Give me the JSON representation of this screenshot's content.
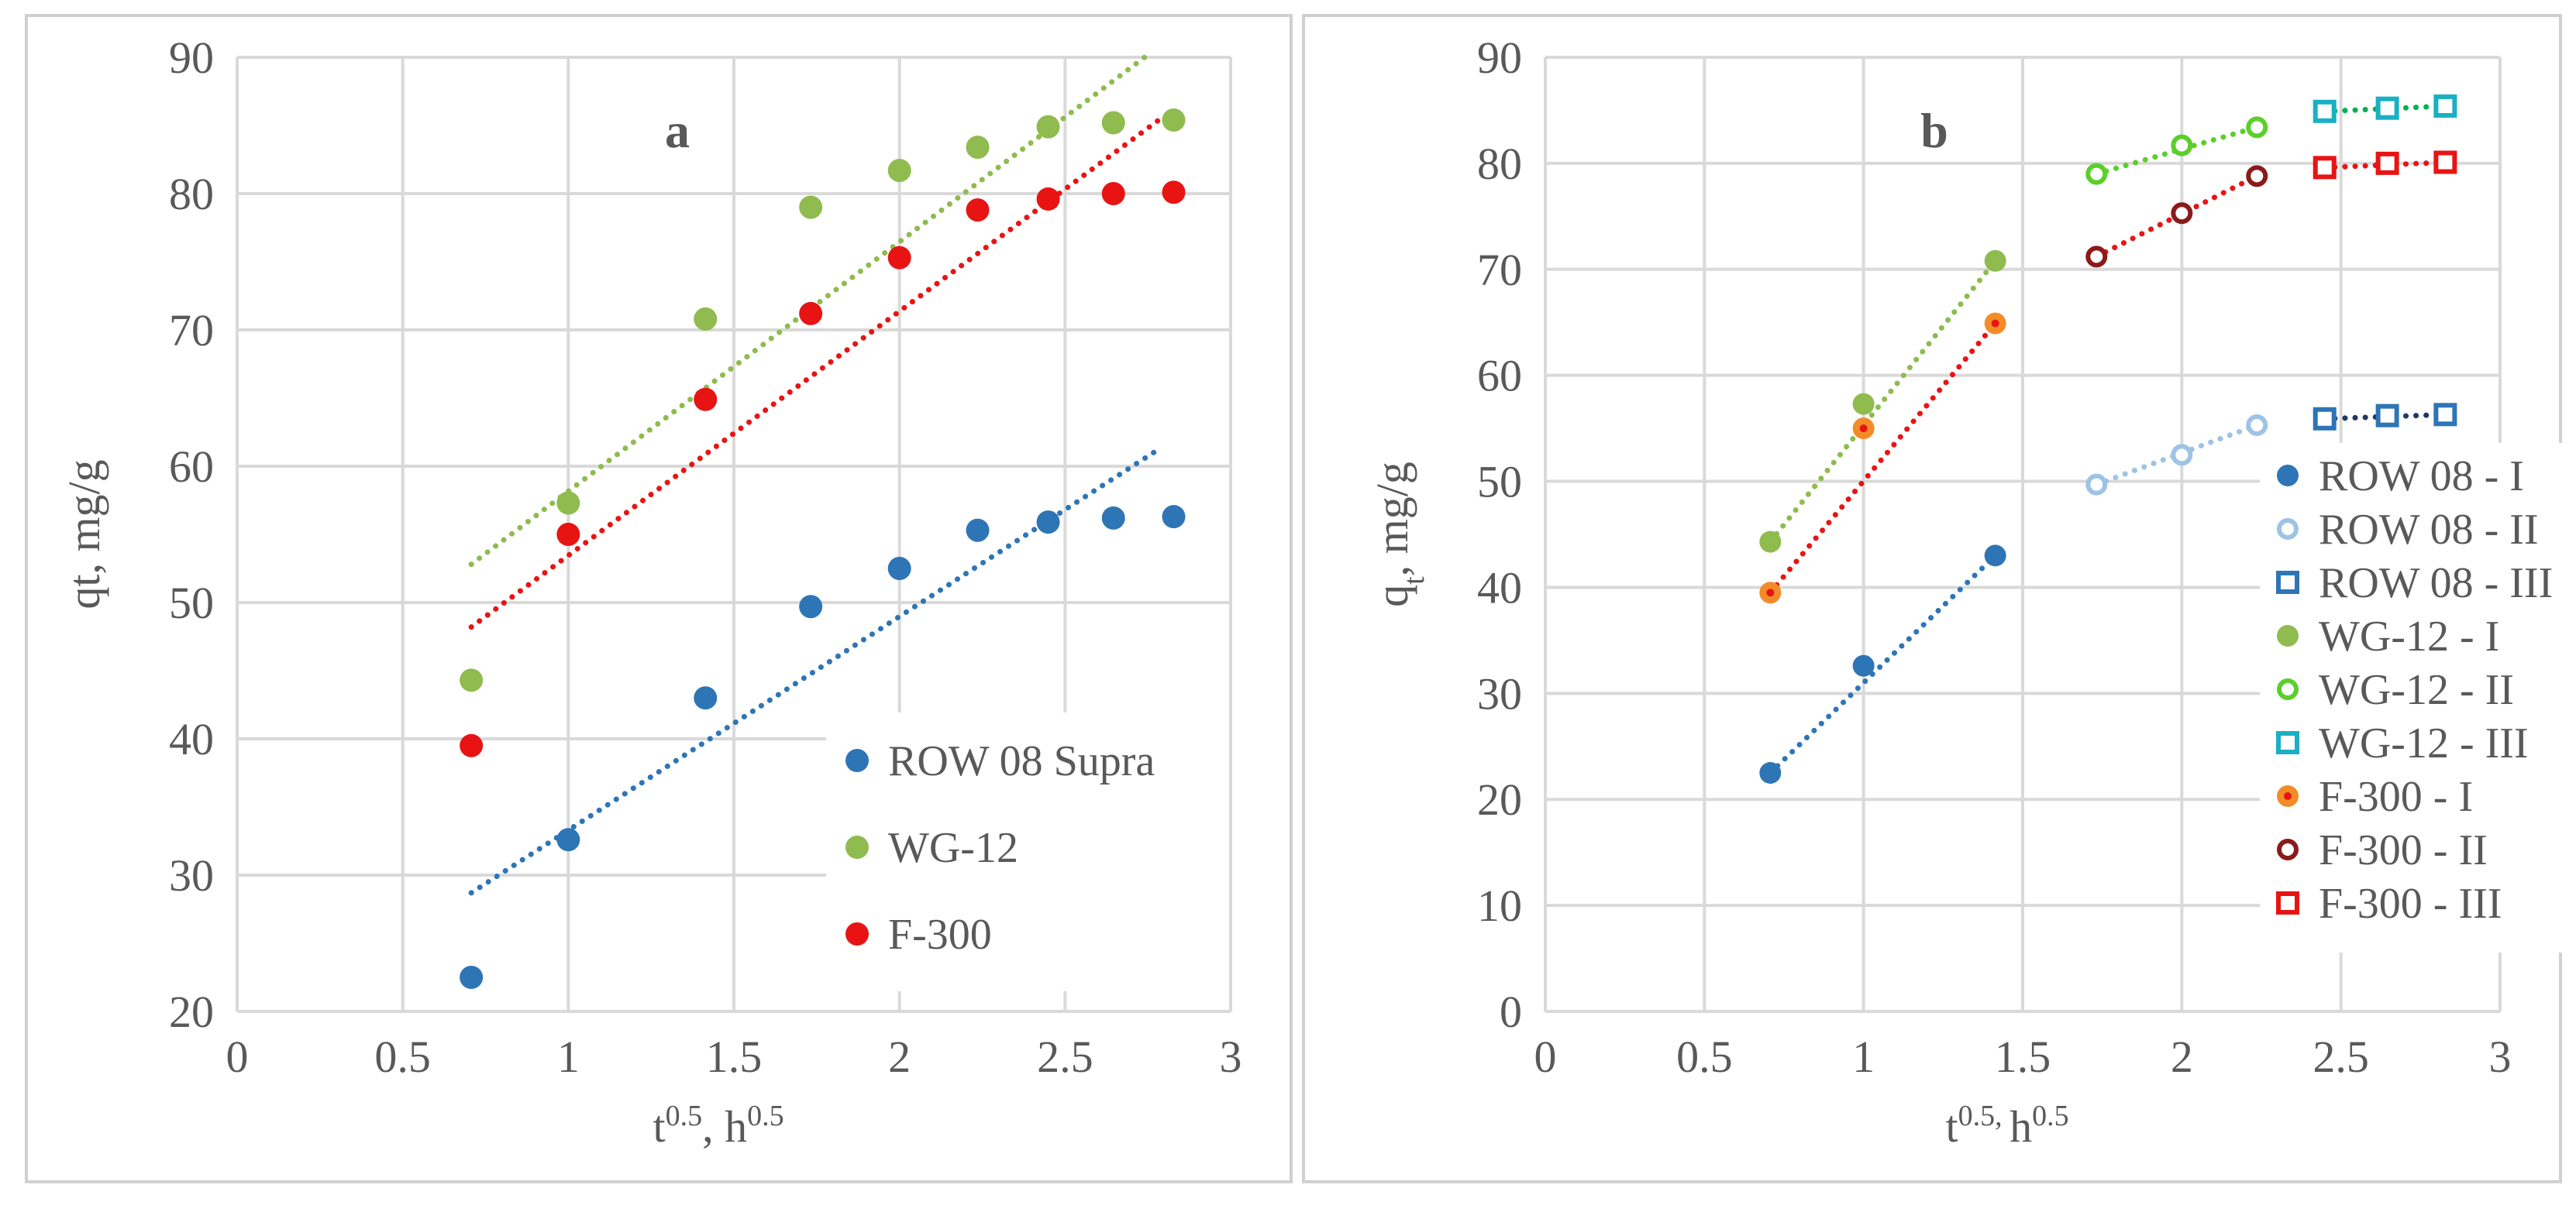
{
  "chart_data": [
    {
      "id": "a",
      "type": "scatter",
      "panel_label": "a",
      "xlabel": "t0.5, h0.5",
      "xlabel_parts": [
        "t",
        "0.5",
        ", h",
        "0.5"
      ],
      "ylabel": "qt, mg/g",
      "xlim": [
        0,
        3
      ],
      "ylim": [
        20,
        90
      ],
      "xticks": [
        "0",
        "0.5",
        "1",
        "1.5",
        "2",
        "2.5",
        "3"
      ],
      "yticks": [
        "20",
        "30",
        "40",
        "50",
        "60",
        "70",
        "80",
        "90"
      ],
      "grid": true,
      "legend_position": "bottom-right",
      "series": [
        {
          "name": "ROW 08 Supra",
          "color": "#2e75b6",
          "marker": "filled-circle",
          "x": [
            0.707,
            1.0,
            1.414,
            1.732,
            2.0,
            2.236,
            2.449,
            2.646,
            2.828
          ],
          "y": [
            22.5,
            32.6,
            43.0,
            49.7,
            52.5,
            55.3,
            55.9,
            56.2,
            56.3
          ],
          "trend": [
            [
              0.707,
              28.7
            ],
            [
              2.78,
              61.2
            ]
          ]
        },
        {
          "name": "WG-12",
          "color": "#8fbb4f",
          "marker": "filled-circle",
          "x": [
            0.707,
            1.0,
            1.414,
            1.732,
            2.0,
            2.236,
            2.449,
            2.646,
            2.828
          ],
          "y": [
            44.3,
            57.3,
            70.8,
            79.0,
            81.7,
            83.4,
            84.9,
            85.2,
            85.4
          ],
          "trend": [
            [
              0.707,
              52.8
            ],
            [
              2.74,
              90.0
            ]
          ]
        },
        {
          "name": "F-300",
          "color": "#e81414",
          "marker": "filled-circle",
          "x": [
            0.707,
            1.0,
            1.414,
            1.732,
            2.0,
            2.236,
            2.449,
            2.646,
            2.828
          ],
          "y": [
            39.5,
            55.0,
            64.9,
            71.2,
            75.3,
            78.8,
            79.6,
            80.0,
            80.1
          ],
          "trend": [
            [
              0.707,
              48.2
            ],
            [
              2.8,
              85.7
            ]
          ]
        }
      ]
    },
    {
      "id": "b",
      "type": "scatter",
      "panel_label": "b",
      "xlabel": "t0.5, h0.5",
      "xlabel_parts": [
        "t",
        "0.5, ",
        "h",
        "0.5"
      ],
      "ylabel": "qt, mg/g",
      "ylabel_parts": [
        "q",
        "t",
        ", mg/g"
      ],
      "xlim": [
        0,
        3
      ],
      "ylim": [
        0,
        90
      ],
      "xticks": [
        "0",
        "0.5",
        "1",
        "1.5",
        "2",
        "2.5",
        "3"
      ],
      "yticks": [
        "0",
        "10",
        "20",
        "30",
        "40",
        "50",
        "60",
        "70",
        "80",
        "90"
      ],
      "grid": true,
      "legend_position": "right",
      "series": [
        {
          "name": "ROW 08 - I",
          "color": "#2e75b6",
          "marker": "filled-circle",
          "x": [
            0.707,
            1.0,
            1.414
          ],
          "y": [
            22.5,
            32.6,
            43.0
          ],
          "trend_color": "#2e75b6"
        },
        {
          "name": "ROW 08 - II",
          "color": "#9dc3e6",
          "marker": "open-circle",
          "x": [
            1.732,
            2.0,
            2.236
          ],
          "y": [
            49.7,
            52.5,
            55.3
          ],
          "trend_color": "#9dc3e6"
        },
        {
          "name": "ROW 08 - III",
          "color": "#2e75b6",
          "marker": "open-square",
          "x": [
            2.449,
            2.646,
            2.828
          ],
          "y": [
            55.9,
            56.2,
            56.3
          ],
          "trend_color": "#1f3864"
        },
        {
          "name": "WG-12 - I",
          "color": "#8fbb4f",
          "marker": "filled-circle",
          "x": [
            0.707,
            1.0,
            1.414
          ],
          "y": [
            44.3,
            57.3,
            70.8
          ],
          "trend_color": "#8fbb4f"
        },
        {
          "name": "WG-12 - II",
          "color": "#5ccf2a",
          "marker": "open-circle",
          "x": [
            1.732,
            2.0,
            2.236
          ],
          "y": [
            79.0,
            81.7,
            83.4
          ],
          "trend_color": "#5ccf2a"
        },
        {
          "name": "WG-12 - III",
          "color": "#1ab0c4",
          "marker": "open-square",
          "x": [
            2.449,
            2.646,
            2.828
          ],
          "y": [
            84.9,
            85.2,
            85.4
          ],
          "trend_color": "#00b050"
        },
        {
          "name": "F-300 - I",
          "color": "#f28c28",
          "marker": "filled-circle-dot",
          "x": [
            0.707,
            1.0,
            1.414
          ],
          "y": [
            39.5,
            55.0,
            64.9
          ],
          "trend_color": "#e81414"
        },
        {
          "name": "F-300 - II",
          "color": "#8b1a1a",
          "marker": "open-circle",
          "x": [
            1.732,
            2.0,
            2.236
          ],
          "y": [
            71.2,
            75.3,
            78.8
          ],
          "trend_color": "#e81414"
        },
        {
          "name": "F-300 - III",
          "color": "#e81414",
          "marker": "open-square",
          "x": [
            2.449,
            2.646,
            2.828
          ],
          "y": [
            79.6,
            80.0,
            80.1
          ],
          "trend_color": "#e81414"
        }
      ]
    }
  ]
}
